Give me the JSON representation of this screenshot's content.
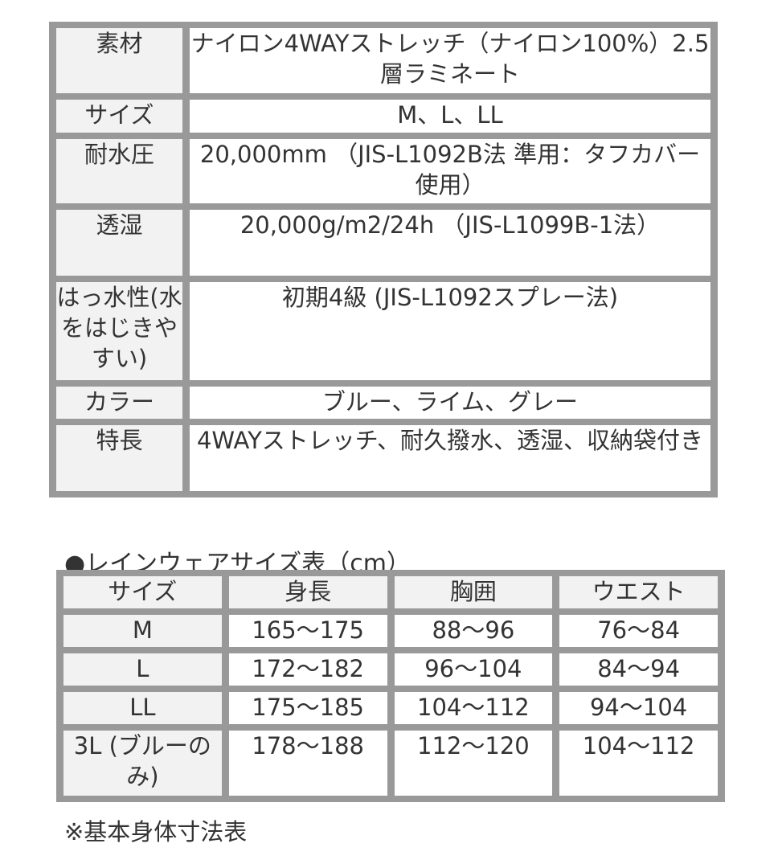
{
  "spec_table": [
    {
      "label": "素材",
      "value": "ナイロン4WAYストレッチ（ナイロン100%）2.5層ラミネート"
    },
    {
      "label": "サイズ",
      "value": "M、L、LL"
    },
    {
      "label": "耐水圧",
      "value": "20,000mm （JIS-L1092B法 準用：タフカバー使用）"
    },
    {
      "label": "透湿",
      "value": "20,000g/m2/24h （JIS-L1099B-1法）"
    },
    {
      "label": "はっ水性(水をはじきやすい)",
      "value": "初期4級 (JIS-L1092スプレー法)"
    },
    {
      "label": "カラー",
      "value": "ブルー、ライム、グレー"
    },
    {
      "label": "特長",
      "value": "4WAYストレッチ、耐久撥水、透湿、収納袋付き"
    }
  ],
  "size_title": "●レインウェアサイズ表（cm）",
  "size_table": {
    "headers": [
      "サイズ",
      "身長",
      "胸囲",
      "ウエスト"
    ],
    "rows": [
      [
        "M",
        "165〜175",
        "88〜96",
        "76〜84"
      ],
      [
        "L",
        "172〜182",
        "96〜104",
        "84〜94"
      ],
      [
        "LL",
        "175〜185",
        "104〜112",
        "94〜104"
      ],
      [
        "3L (ブルーのみ)",
        "178〜188",
        "112〜120",
        "104〜112"
      ]
    ]
  },
  "note": "※基本身体寸法表"
}
